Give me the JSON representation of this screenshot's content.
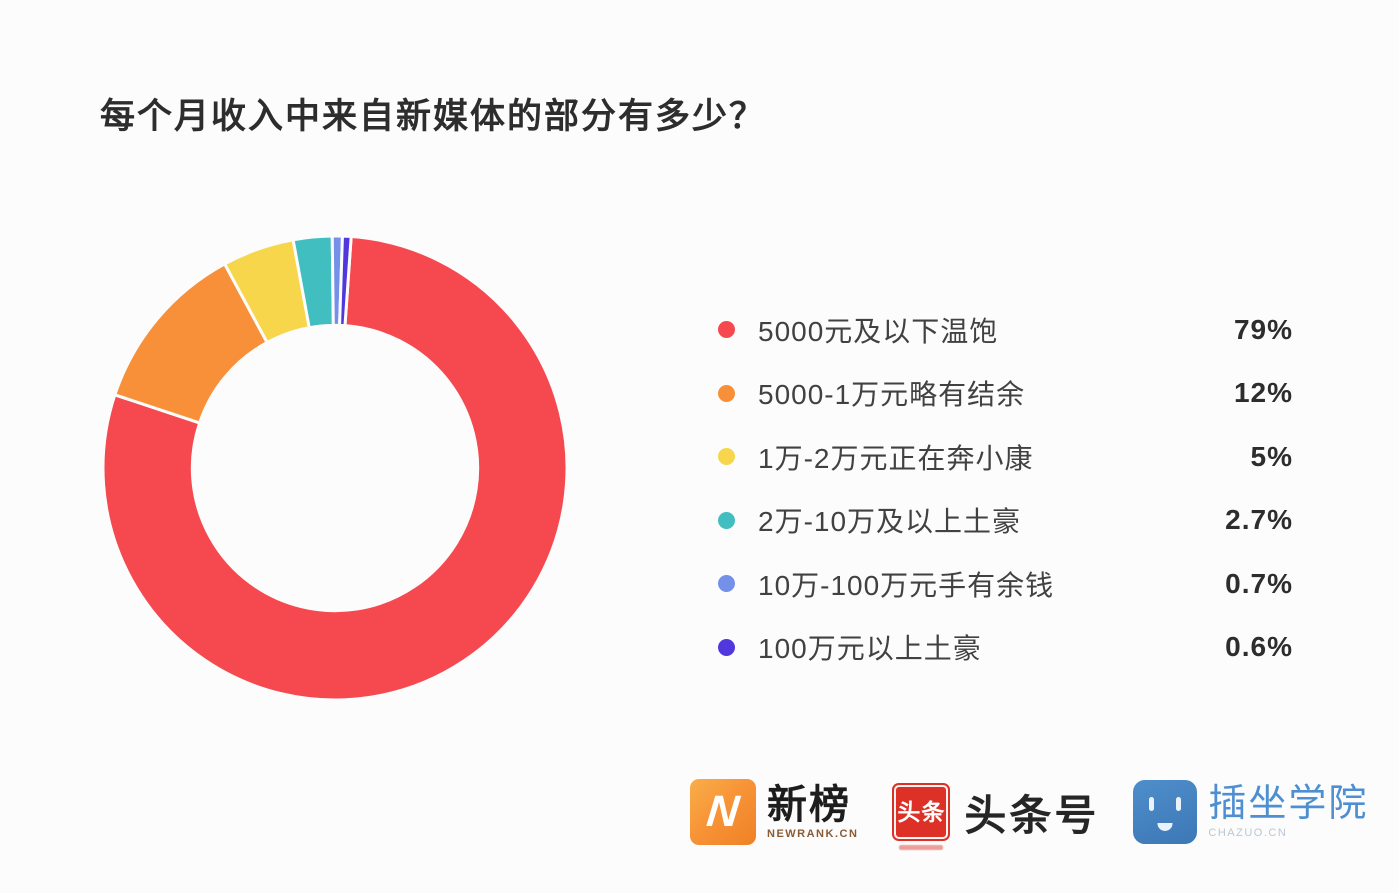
{
  "title": "每个月收入中来自新媒体的部分有多少？",
  "chart_data": {
    "type": "pie",
    "style": "donut",
    "title": "每个月收入中来自新媒体的部分有多少？",
    "categories": [
      "5000元及以下温饱",
      "5000-1万元略有结余",
      "1万-2万元正在奔小康",
      "2万-10万及以上土豪",
      "10万-100万元手有余钱",
      "100万元以上土豪"
    ],
    "values": [
      79,
      12,
      5,
      2.7,
      0.7,
      0.6
    ],
    "percent_labels": [
      "79%",
      "12%",
      "5%",
      "2.7%",
      "0.7%",
      "0.6%"
    ],
    "colors": [
      "#F5484F",
      "#F79038",
      "#F7D64B",
      "#41BEC0",
      "#7590E8",
      "#5038DE"
    ],
    "legend_position": "right",
    "start_angle_deg": 4,
    "clockwise": true,
    "inner_radius_ratio": 0.615,
    "slice_gap_color": "#FCFCFC",
    "slice_gap_width": 3
  },
  "footer": {
    "newrank": {
      "logo_letter": "N",
      "name": "新榜",
      "subtext": "NEWRANK.CN"
    },
    "toutiao": {
      "badge_text": "头条",
      "name": "头条号"
    },
    "chazuo": {
      "name": "插坐学院",
      "subtext": "CHAZUO.CN"
    }
  },
  "colors": {
    "background": "#FCFCFC",
    "title_text": "#2D2D2D",
    "legend_label_text": "#414141",
    "legend_value_text": "#2D2D2D",
    "newrank_orange": "#F79336",
    "toutiao_red": "#DD3127",
    "chazuo_blue": "#4E8ECB"
  }
}
